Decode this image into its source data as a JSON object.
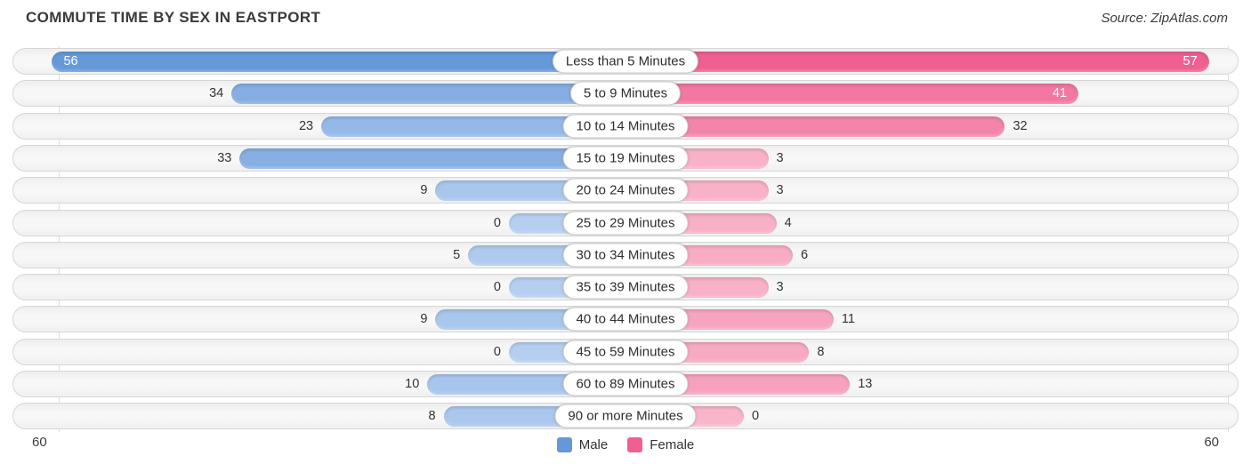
{
  "title": "COMMUTE TIME BY SEX IN EASTPORT",
  "source": "Source: ZipAtlas.com",
  "axis": {
    "left_max": "60",
    "right_max": "60"
  },
  "legend": {
    "male_label": "Male",
    "female_label": "Female"
  },
  "colors": {
    "male_dark": "#6598d8",
    "male_light": "#b6cff1",
    "female_dark": "#ef5f92",
    "female_light": "#f9b6ca",
    "track_bg": "#f4f4f4",
    "track_border": "#d6d6d6",
    "grid": "#dcdcdc",
    "value_text": "#333333",
    "value_text_inside": "#ffffff"
  },
  "chart_data": {
    "type": "bar",
    "orientation": "horizontal-diverging",
    "title": "Commute Time by Sex in Eastport",
    "categories": [
      "Less than 5 Minutes",
      "5 to 9 Minutes",
      "10 to 14 Minutes",
      "15 to 19 Minutes",
      "20 to 24 Minutes",
      "25 to 29 Minutes",
      "30 to 34 Minutes",
      "35 to 39 Minutes",
      "40 to 44 Minutes",
      "45 to 59 Minutes",
      "60 to 89 Minutes",
      "90 or more Minutes"
    ],
    "series": [
      {
        "name": "Male",
        "values": [
          56,
          34,
          23,
          33,
          9,
          0,
          5,
          0,
          9,
          0,
          10,
          8
        ]
      },
      {
        "name": "Female",
        "values": [
          57,
          41,
          32,
          3,
          3,
          4,
          6,
          3,
          11,
          8,
          13,
          0
        ]
      }
    ],
    "axis_max": 60,
    "legend_position": "bottom",
    "grid": "plot-edge-vertical-lines"
  }
}
